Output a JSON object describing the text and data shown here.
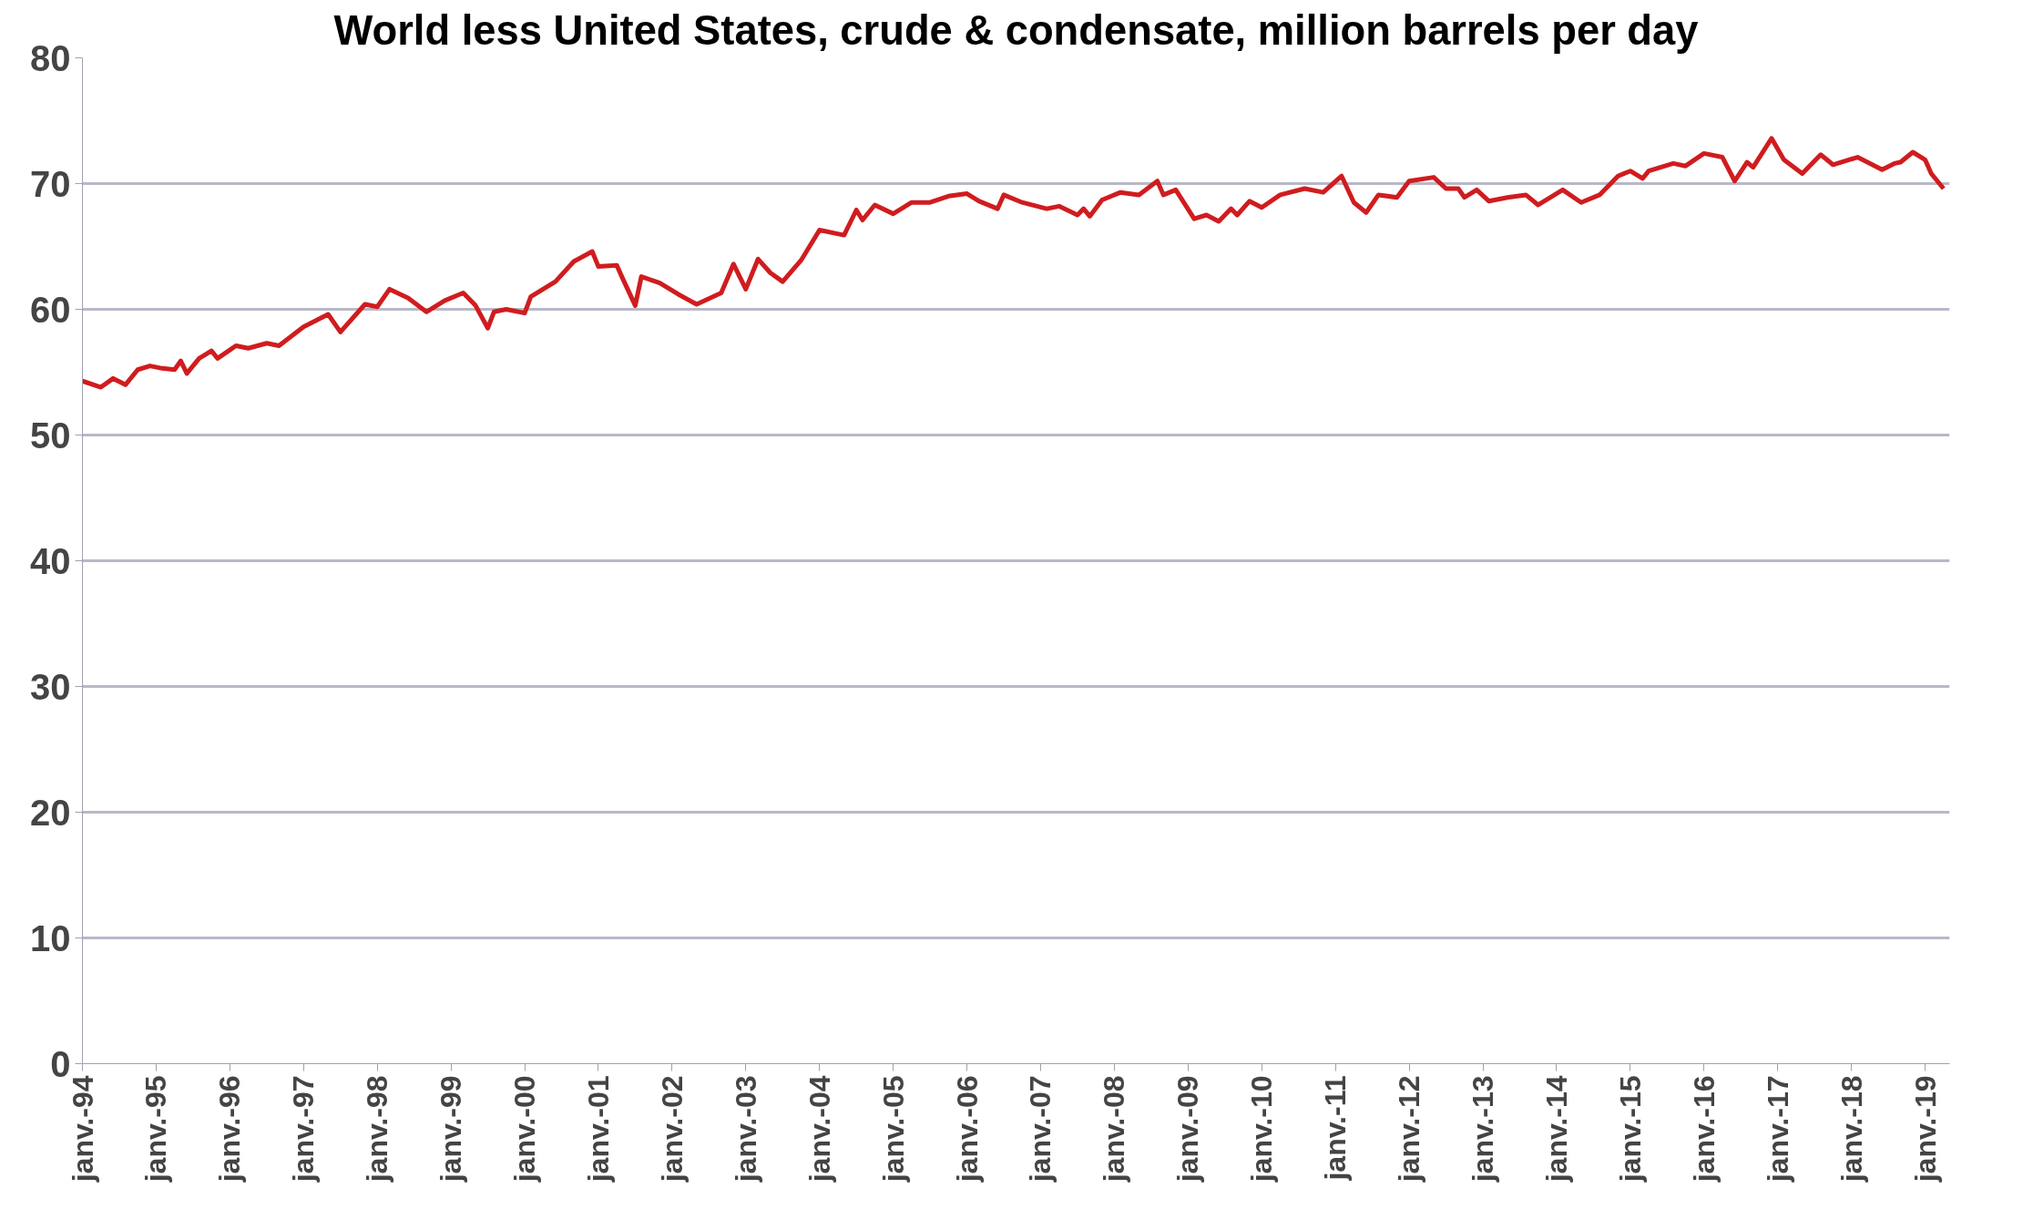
{
  "chart_data": {
    "type": "line",
    "title": "World less United States, crude & condensate, million barrels per day",
    "x": [
      "1994-01",
      "1994-04",
      "1994-06",
      "1994-08",
      "1994-10",
      "1994-12",
      "1995-02",
      "1995-04",
      "1995-05",
      "1995-06",
      "1995-08",
      "1995-10",
      "1995-11",
      "1996-02",
      "1996-04",
      "1996-07",
      "1996-09",
      "1997-01",
      "1997-05",
      "1997-07",
      "1997-11",
      "1998-01",
      "1998-03",
      "1998-06",
      "1998-09",
      "1998-12",
      "1999-03",
      "1999-05",
      "1999-07",
      "1999-08",
      "1999-10",
      "2000-01",
      "2000-02",
      "2000-06",
      "2000-09",
      "2000-12",
      "2001-01",
      "2001-04",
      "2001-05",
      "2001-07",
      "2001-08",
      "2001-11",
      "2002-02",
      "2002-05",
      "2002-09",
      "2002-11",
      "2003-01",
      "2003-03",
      "2003-05",
      "2003-07",
      "2003-10",
      "2004-01",
      "2004-05",
      "2004-07",
      "2004-08",
      "2004-10",
      "2005-01",
      "2005-04",
      "2005-07",
      "2005-10",
      "2006-01",
      "2006-03",
      "2006-06",
      "2006-07",
      "2006-10",
      "2007-02",
      "2007-04",
      "2007-07",
      "2007-08",
      "2007-09",
      "2007-11",
      "2008-02",
      "2008-05",
      "2008-08",
      "2008-09",
      "2008-11",
      "2009-02",
      "2009-04",
      "2009-06",
      "2009-08",
      "2009-09",
      "2009-11",
      "2010-01",
      "2010-04",
      "2010-08",
      "2010-11",
      "2011-02",
      "2011-04",
      "2011-06",
      "2011-08",
      "2011-11",
      "2012-01",
      "2012-05",
      "2012-07",
      "2012-09",
      "2012-10",
      "2012-12",
      "2013-02",
      "2013-05",
      "2013-08",
      "2013-10",
      "2014-02",
      "2014-05",
      "2014-08",
      "2014-11",
      "2015-01",
      "2015-03",
      "2015-04",
      "2015-08",
      "2015-10",
      "2016-01",
      "2016-04",
      "2016-06",
      "2016-08",
      "2016-09",
      "2016-12",
      "2017-02",
      "2017-05",
      "2017-08",
      "2017-10",
      "2018-02",
      "2018-06",
      "2018-08",
      "2018-09",
      "2018-11",
      "2019-01",
      "2019-02",
      "2019-04"
    ],
    "series": [
      {
        "color": "#d01c1f",
        "values": [
          54.3,
          53.8,
          54.5,
          54.0,
          55.2,
          55.5,
          55.3,
          55.2,
          55.9,
          54.9,
          56.1,
          56.7,
          56.1,
          57.1,
          56.9,
          57.3,
          57.1,
          58.6,
          59.6,
          58.2,
          60.4,
          60.2,
          61.6,
          60.9,
          59.8,
          60.7,
          61.3,
          60.3,
          58.5,
          59.8,
          60.0,
          59.7,
          61.0,
          62.2,
          63.8,
          64.6,
          63.4,
          63.5,
          62.4,
          60.3,
          62.6,
          62.1,
          61.2,
          60.4,
          61.3,
          63.6,
          61.6,
          64.0,
          62.9,
          62.2,
          63.9,
          66.3,
          65.9,
          67.9,
          67.1,
          68.3,
          67.6,
          68.5,
          68.5,
          69.0,
          69.2,
          68.6,
          68.0,
          69.1,
          68.5,
          68.0,
          68.2,
          67.5,
          68.0,
          67.4,
          68.7,
          69.3,
          69.1,
          70.2,
          69.1,
          69.5,
          67.2,
          67.5,
          67.0,
          68.0,
          67.5,
          68.6,
          68.1,
          69.1,
          69.6,
          69.3,
          70.6,
          68.5,
          67.7,
          69.1,
          68.9,
          70.2,
          70.5,
          69.6,
          69.6,
          68.9,
          69.5,
          68.6,
          68.9,
          69.1,
          68.3,
          69.5,
          68.5,
          69.1,
          70.6,
          71.0,
          70.4,
          71.0,
          71.6,
          71.4,
          72.4,
          72.1,
          70.2,
          71.7,
          71.3,
          73.6,
          71.9,
          70.8,
          72.3,
          71.5,
          72.1,
          71.1,
          71.6,
          71.7,
          72.5,
          71.9,
          70.8,
          69.6
        ]
      }
    ],
    "xlim": [
      "1994-01",
      "2019-05"
    ],
    "xticks": [
      {
        "value": "1994-01",
        "label": "janv.-94"
      },
      {
        "value": "1995-01",
        "label": "janv.-95"
      },
      {
        "value": "1996-01",
        "label": "janv.-96"
      },
      {
        "value": "1997-01",
        "label": "janv.-97"
      },
      {
        "value": "1998-01",
        "label": "janv.-98"
      },
      {
        "value": "1999-01",
        "label": "janv.-99"
      },
      {
        "value": "2000-01",
        "label": "janv.-00"
      },
      {
        "value": "2001-01",
        "label": "janv.-01"
      },
      {
        "value": "2002-01",
        "label": "janv.-02"
      },
      {
        "value": "2003-01",
        "label": "janv.-03"
      },
      {
        "value": "2004-01",
        "label": "janv.-04"
      },
      {
        "value": "2005-01",
        "label": "janv.-05"
      },
      {
        "value": "2006-01",
        "label": "janv.-06"
      },
      {
        "value": "2007-01",
        "label": "janv.-07"
      },
      {
        "value": "2008-01",
        "label": "janv.-08"
      },
      {
        "value": "2009-01",
        "label": "janv.-09"
      },
      {
        "value": "2010-01",
        "label": "janv.-10"
      },
      {
        "value": "2011-01",
        "label": "janv.-11"
      },
      {
        "value": "2012-01",
        "label": "janv.-12"
      },
      {
        "value": "2013-01",
        "label": "janv.-13"
      },
      {
        "value": "2014-01",
        "label": "janv.-14"
      },
      {
        "value": "2015-01",
        "label": "janv.-15"
      },
      {
        "value": "2016-01",
        "label": "janv.-16"
      },
      {
        "value": "2017-01",
        "label": "janv.-17"
      },
      {
        "value": "2018-01",
        "label": "janv.-18"
      },
      {
        "value": "2019-01",
        "label": "janv.-19"
      }
    ],
    "ylim": [
      0,
      80
    ],
    "yticks": [
      0,
      10,
      20,
      30,
      40,
      50,
      60,
      70,
      80
    ],
    "grid": "y",
    "marker": "none",
    "line_style": "solid"
  }
}
